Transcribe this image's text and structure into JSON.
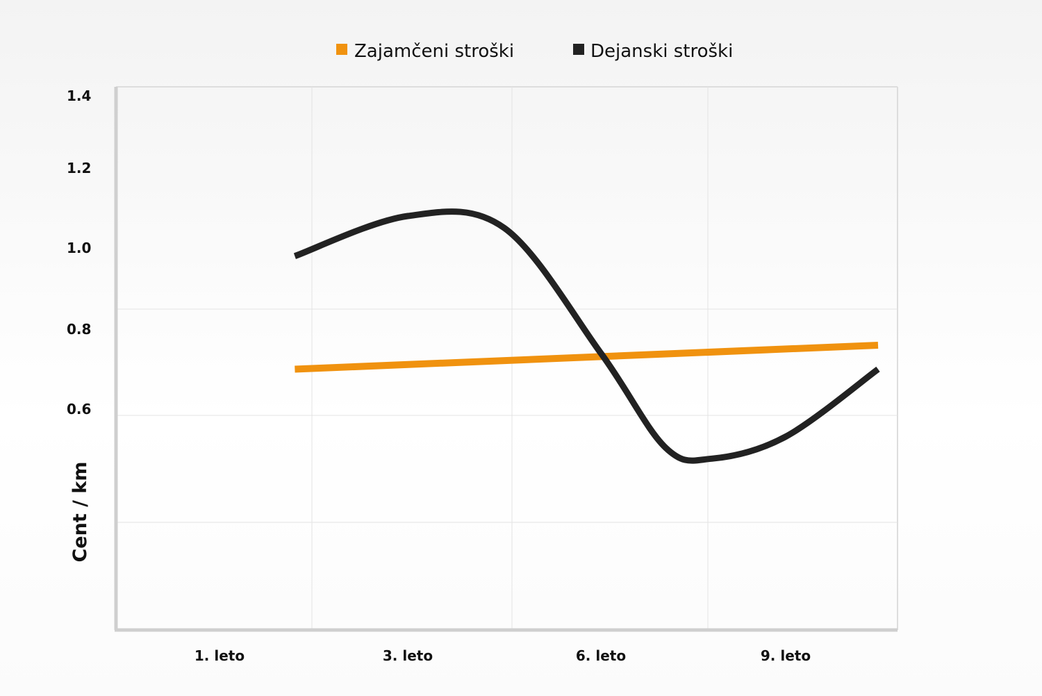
{
  "chart_data": {
    "type": "line",
    "title": "",
    "xlabel": "",
    "ylabel": "Cent / km",
    "categories": [
      "1. leto",
      "3. leto",
      "6. leto",
      "9. leto"
    ],
    "y_ticks": [
      "1.4",
      "1.2",
      "1.0",
      "0.8",
      "0.6"
    ],
    "ylim": [
      0.2,
      1.4
    ],
    "grid": true,
    "legend_position": "top-center",
    "series": [
      {
        "name": "Zajamčeni stroški",
        "color": "#f0920f",
        "x": [
          0.4,
          3.5
        ],
        "y": [
          0.7,
          0.76
        ]
      },
      {
        "name": "Dejanski stroški",
        "color": "#222222",
        "x": [
          0.4,
          1.0,
          1.5,
          2.0,
          2.35,
          2.6,
          3.0,
          3.5
        ],
        "y": [
          0.98,
          1.08,
          1.05,
          0.74,
          0.53,
          0.51,
          0.55,
          0.7
        ]
      }
    ]
  }
}
